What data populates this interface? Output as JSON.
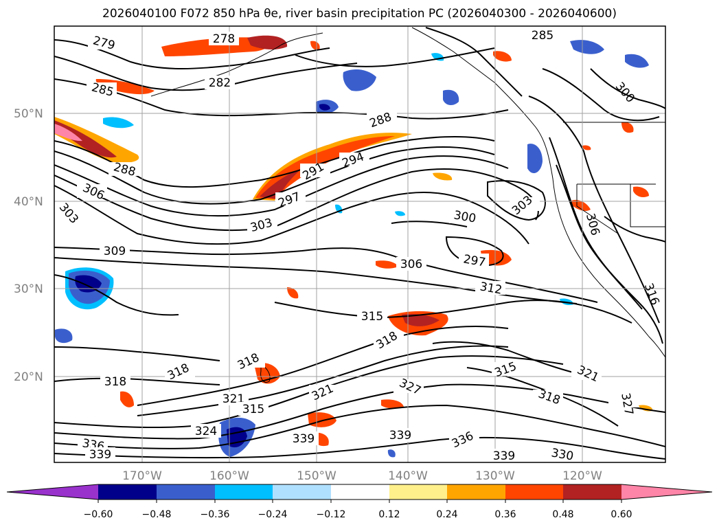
{
  "title": "2026040100 F072 850 hPa θe, river basin precipitation PC (2026040300 - 2026040600)",
  "map": {
    "lat_labels": [
      "50°N",
      "40°N",
      "30°N",
      "20°N"
    ],
    "lon_labels": [
      "170°W",
      "160°W",
      "150°W",
      "140°W",
      "130°W",
      "120°W"
    ],
    "contour_labels": [
      "279",
      "278",
      "282",
      "285",
      "285",
      "288",
      "288",
      "291",
      "294",
      "297",
      "300",
      "303",
      "303",
      "306",
      "303",
      "309",
      "306",
      "297",
      "312",
      "315",
      "318",
      "318",
      "318",
      "315",
      "321",
      "321",
      "321",
      "327",
      "318",
      "324",
      "327",
      "315",
      "318",
      "336",
      "339",
      "339",
      "339",
      "336",
      "339",
      "330",
      "300",
      "306",
      "316"
    ]
  },
  "colorbar": {
    "ticks": [
      "−0.60",
      "−0.48",
      "−0.36",
      "−0.24",
      "−0.12",
      "0.12",
      "0.24",
      "0.36",
      "0.48",
      "0.60"
    ],
    "colors": [
      "#9932cc",
      "#00008b",
      "#3a5fcd",
      "#00bfff",
      "#b0e0ff",
      "#ffffff",
      "#fff08c",
      "#ffa500",
      "#ff4500",
      "#b22222",
      "#ff85a8"
    ]
  }
}
